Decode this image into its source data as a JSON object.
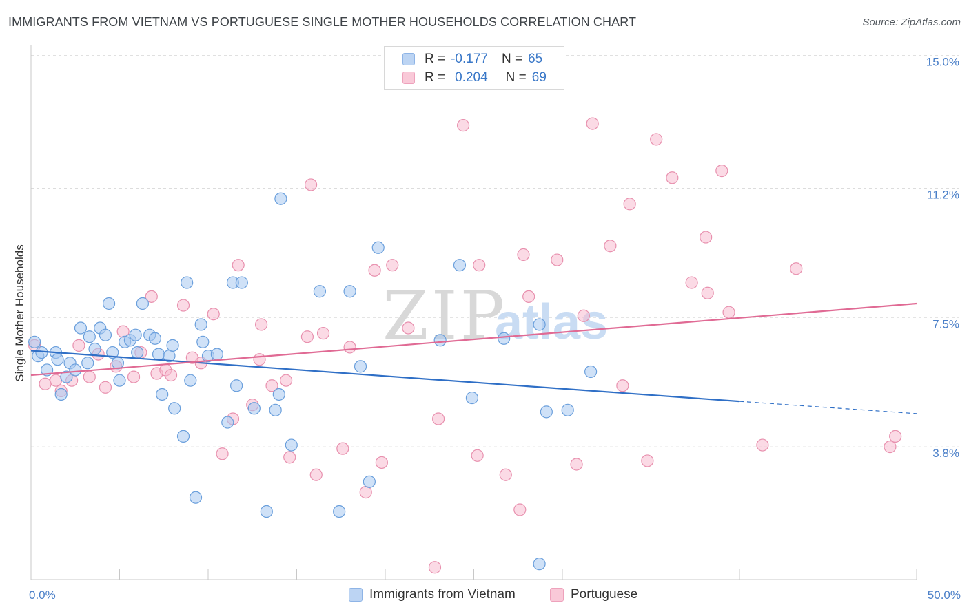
{
  "title": "IMMIGRANTS FROM VIETNAM VS PORTUGUESE SINGLE MOTHER HOUSEHOLDS CORRELATION CHART",
  "source": "Source: ZipAtlas.com",
  "watermark": {
    "zip": "ZIP",
    "atlas": "atlas"
  },
  "colors": {
    "blue": "#a8c8f0",
    "blue_edge": "#6a9fdc",
    "blue_line": "#2f6fc6",
    "pink": "#f7bcd0",
    "pink_edge": "#e890ae",
    "pink_line": "#e06a94",
    "label": "#4a7fc8"
  },
  "legend": {
    "rows": [
      {
        "r_label": "R =",
        "r_value": "-0.177",
        "n_label": "N =",
        "n_value": "65"
      },
      {
        "r_label": "R =",
        "r_value": "0.204",
        "n_label": "N =",
        "n_value": "69"
      }
    ]
  },
  "bottom_legend": [
    "Immigrants from Vietnam",
    "Portuguese"
  ],
  "chart_data": {
    "type": "scatter",
    "title": "IMMIGRANTS FROM VIETNAM VS PORTUGUESE SINGLE MOTHER HOUSEHOLDS CORRELATION CHART",
    "xlabel": "",
    "ylabel": "Single Mother Households",
    "xlim": [
      0,
      50
    ],
    "ylim": [
      0,
      15.8
    ],
    "x_tick_labels": [
      "0.0%",
      "50.0%"
    ],
    "y_ticks": [
      3.8,
      7.5,
      11.2,
      15.0
    ],
    "y_tick_labels": [
      "3.8%",
      "7.5%",
      "11.2%",
      "15.0%"
    ],
    "grid": "horizontal dashed",
    "legend_position": "top-center",
    "series": [
      {
        "name": "Immigrants from Vietnam",
        "r": -0.177,
        "n": 65,
        "trend": {
          "x0": 0,
          "y0": 6.55,
          "x1": 40,
          "y1": 5.1,
          "dashed_to": 50,
          "dashed_y": 4.75
        },
        "points": [
          [
            0.2,
            6.8
          ],
          [
            0.4,
            6.4
          ],
          [
            0.6,
            6.5
          ],
          [
            0.9,
            6.0
          ],
          [
            1.4,
            6.5
          ],
          [
            1.5,
            6.3
          ],
          [
            1.7,
            5.3
          ],
          [
            2.0,
            5.8
          ],
          [
            2.2,
            6.2
          ],
          [
            2.5,
            6.0
          ],
          [
            2.8,
            7.2
          ],
          [
            3.2,
            6.2
          ],
          [
            3.3,
            6.95
          ],
          [
            3.6,
            6.6
          ],
          [
            3.9,
            7.2
          ],
          [
            4.2,
            7.0
          ],
          [
            4.4,
            7.9
          ],
          [
            4.6,
            6.5
          ],
          [
            4.9,
            6.2
          ],
          [
            5.0,
            5.7
          ],
          [
            5.3,
            6.8
          ],
          [
            5.6,
            6.85
          ],
          [
            5.9,
            7.0
          ],
          [
            6.0,
            6.5
          ],
          [
            6.3,
            7.9
          ],
          [
            6.7,
            7.0
          ],
          [
            7.0,
            6.9
          ],
          [
            7.2,
            6.45
          ],
          [
            7.4,
            5.3
          ],
          [
            7.8,
            6.4
          ],
          [
            8.0,
            6.7
          ],
          [
            8.1,
            4.9
          ],
          [
            8.6,
            4.1
          ],
          [
            8.8,
            8.5
          ],
          [
            9.0,
            5.7
          ],
          [
            9.3,
            2.35
          ],
          [
            9.6,
            7.3
          ],
          [
            9.7,
            6.8
          ],
          [
            10.0,
            6.4
          ],
          [
            10.5,
            6.45
          ],
          [
            11.1,
            4.5
          ],
          [
            11.4,
            8.5
          ],
          [
            11.6,
            5.55
          ],
          [
            11.9,
            8.5
          ],
          [
            12.6,
            4.9
          ],
          [
            13.3,
            1.95
          ],
          [
            13.8,
            4.85
          ],
          [
            14.0,
            5.3
          ],
          [
            14.1,
            10.9
          ],
          [
            14.7,
            3.85
          ],
          [
            16.3,
            8.25
          ],
          [
            17.4,
            1.95
          ],
          [
            18.0,
            8.25
          ],
          [
            18.6,
            6.1
          ],
          [
            19.1,
            2.8
          ],
          [
            19.6,
            9.5
          ],
          [
            23.1,
            6.85
          ],
          [
            24.2,
            9.0
          ],
          [
            24.9,
            5.2
          ],
          [
            26.7,
            6.9
          ],
          [
            28.7,
            7.3
          ],
          [
            28.7,
            0.45
          ],
          [
            29.1,
            4.8
          ],
          [
            30.3,
            4.85
          ],
          [
            31.6,
            5.95
          ]
        ]
      },
      {
        "name": "Portuguese",
        "r": 0.204,
        "n": 69,
        "trend": {
          "x0": 0,
          "y0": 5.85,
          "x1": 50,
          "y1": 7.9
        },
        "points": [
          [
            0.2,
            6.7
          ],
          [
            0.8,
            5.6
          ],
          [
            1.4,
            5.7
          ],
          [
            1.7,
            5.4
          ],
          [
            2.3,
            5.7
          ],
          [
            2.7,
            6.7
          ],
          [
            3.3,
            5.8
          ],
          [
            3.8,
            6.45
          ],
          [
            4.2,
            5.5
          ],
          [
            4.8,
            6.1
          ],
          [
            5.2,
            7.1
          ],
          [
            5.8,
            5.8
          ],
          [
            6.2,
            6.5
          ],
          [
            6.8,
            8.1
          ],
          [
            7.1,
            5.9
          ],
          [
            7.6,
            6.0
          ],
          [
            7.9,
            5.85
          ],
          [
            8.6,
            7.85
          ],
          [
            9.1,
            6.35
          ],
          [
            9.6,
            6.2
          ],
          [
            10.3,
            7.6
          ],
          [
            10.8,
            3.6
          ],
          [
            11.4,
            4.6
          ],
          [
            11.7,
            9.0
          ],
          [
            12.5,
            5.0
          ],
          [
            12.9,
            6.3
          ],
          [
            13.0,
            7.3
          ],
          [
            13.6,
            5.55
          ],
          [
            14.4,
            5.7
          ],
          [
            14.6,
            3.5
          ],
          [
            15.6,
            6.95
          ],
          [
            15.8,
            11.3
          ],
          [
            16.1,
            3.0
          ],
          [
            16.5,
            7.05
          ],
          [
            17.6,
            3.75
          ],
          [
            18.0,
            6.65
          ],
          [
            18.9,
            2.5
          ],
          [
            19.4,
            8.85
          ],
          [
            19.8,
            3.35
          ],
          [
            20.4,
            9.0
          ],
          [
            21.3,
            7.2
          ],
          [
            22.8,
            0.35
          ],
          [
            23.0,
            4.6
          ],
          [
            24.4,
            13.0
          ],
          [
            25.2,
            3.55
          ],
          [
            25.3,
            9.0
          ],
          [
            26.8,
            3.0
          ],
          [
            27.6,
            2.0
          ],
          [
            27.8,
            9.3
          ],
          [
            28.1,
            8.1
          ],
          [
            29.7,
            9.15
          ],
          [
            30.8,
            3.3
          ],
          [
            31.2,
            7.55
          ],
          [
            31.7,
            13.05
          ],
          [
            32.7,
            9.55
          ],
          [
            33.4,
            5.55
          ],
          [
            33.8,
            10.75
          ],
          [
            34.8,
            3.4
          ],
          [
            35.3,
            12.6
          ],
          [
            36.2,
            11.5
          ],
          [
            37.3,
            8.5
          ],
          [
            38.1,
            9.8
          ],
          [
            38.2,
            8.2
          ],
          [
            39.0,
            11.7
          ],
          [
            39.4,
            7.65
          ],
          [
            41.3,
            3.85
          ],
          [
            43.2,
            8.9
          ],
          [
            48.5,
            3.8
          ],
          [
            48.8,
            4.1
          ]
        ]
      }
    ]
  }
}
